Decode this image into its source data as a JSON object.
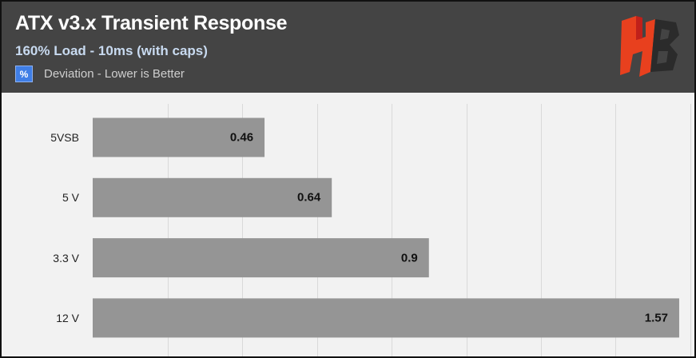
{
  "header": {
    "title": "ATX v3.x Transient Response",
    "subtitle": "160% Load - 10ms (with caps)",
    "legend_symbol": "%",
    "legend_label": "Deviation - Lower is Better"
  },
  "logo": {
    "icon": "hb-logo-icon",
    "colors": [
      "#ff5a1f",
      "#c0201a",
      "#2a2a2a"
    ]
  },
  "colors": {
    "header_bg": "#444444",
    "plot_bg": "#f2f2f2",
    "bar": "#959595",
    "legend_swatch": "#3f7ee6",
    "subtitle": "#c8daf0"
  },
  "chart_data": {
    "type": "bar",
    "orientation": "horizontal",
    "title": "ATX v3.x Transient Response",
    "subtitle": "160% Load - 10ms (with caps)",
    "categories": [
      "5VSB",
      "5 V",
      "3.3 V",
      "12 V"
    ],
    "series": [
      {
        "name": "Deviation - Lower is Better",
        "values": [
          0.46,
          0.64,
          0.9,
          1.57
        ]
      }
    ],
    "xlim": [
      0,
      1.6
    ],
    "grid": true,
    "legend_position": "top-left"
  }
}
